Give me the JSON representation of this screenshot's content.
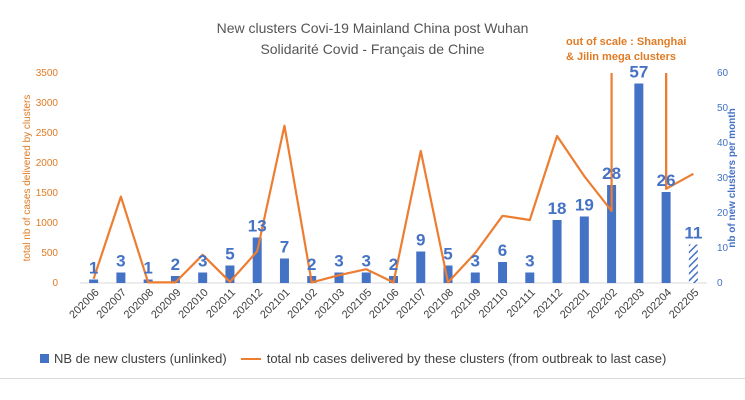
{
  "chart_data": {
    "type": "bar+line",
    "title": "New clusters Covi-19 Mainland China post Wuhan",
    "subtitle": "Solidarité Covid - Français de Chine",
    "annotation_lines": [
      "out of scale : Shanghai",
      "& Jilin mega clusters"
    ],
    "categories": [
      "202006",
      "202007",
      "202008",
      "202009",
      "202010",
      "202011",
      "202012",
      "202101",
      "202102",
      "202103",
      "202105",
      "202106",
      "202107",
      "202108",
      "202109",
      "202110",
      "202111",
      "202112",
      "202201",
      "202202",
      "202203",
      "202204",
      "202205"
    ],
    "left_axis": {
      "label": "total nb of cases delivered by clusters",
      "ticks": [
        0,
        500,
        1000,
        1500,
        2000,
        2500,
        3000,
        3500
      ],
      "range": [
        0,
        3500
      ],
      "color": "#e07b24"
    },
    "right_axis": {
      "label": "nb of new clusters per month",
      "ticks": [
        0,
        10,
        20,
        30,
        40,
        50,
        60
      ],
      "range": [
        0,
        60
      ],
      "color": "#4472c4"
    },
    "series": [
      {
        "name": "NB de new clusters (unlinked)",
        "type": "bar",
        "axis": "right",
        "color": "#4472c4",
        "values": [
          1,
          3,
          1,
          2,
          3,
          5,
          13,
          7,
          2,
          3,
          3,
          2,
          9,
          5,
          3,
          6,
          3,
          18,
          19,
          28,
          57,
          26,
          11
        ],
        "labels": [
          "1",
          "3",
          "1",
          "2",
          "3",
          "5",
          "13",
          "7",
          "2",
          "3",
          "3",
          "2",
          "9",
          "5",
          "3",
          "6",
          "3",
          "18",
          "19",
          "28",
          "57",
          "26",
          "11"
        ],
        "hatched_last": true
      },
      {
        "name": "total nb cases delivered by these clusters (from outbreak  to last case)",
        "type": "line",
        "axis": "left",
        "color": "#ed7d31",
        "values": [
          70,
          1440,
          10,
          10,
          470,
          20,
          530,
          2620,
          10,
          130,
          230,
          10,
          2200,
          10,
          500,
          1120,
          1050,
          2450,
          1780,
          1200,
          null,
          1570,
          1820
        ],
        "out_of_scale_spikes": [
          "202202",
          "202204"
        ]
      }
    ],
    "grid": false,
    "legend_position": "bottom"
  }
}
